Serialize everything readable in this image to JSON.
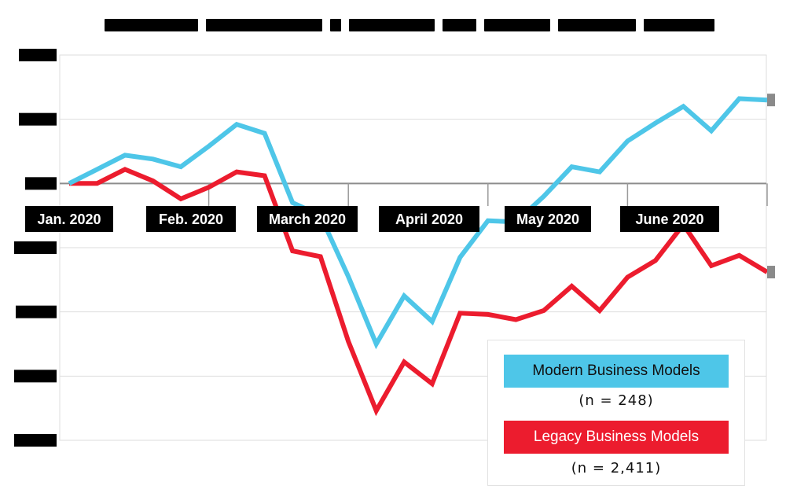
{
  "chart_data": {
    "type": "line",
    "title": "",
    "xlabel": "",
    "ylabel": "",
    "month_labels": [
      "Jan. 2020",
      "Feb. 2020",
      "March 2020",
      "April 2020",
      "May 2020",
      "June 2020"
    ],
    "ylim": [
      -40,
      20
    ],
    "y_ticks": [
      20,
      10,
      0,
      -10,
      -20,
      -30,
      -40
    ],
    "grid": true,
    "legend_position": "bottom-right",
    "series": [
      {
        "name": "Modern Business Models",
        "note": "(n = 248)",
        "color": "#4ec6e8",
        "values": [
          0,
          2.2,
          4.4,
          3.8,
          2.6,
          5.8,
          9.2,
          7.8,
          -3.0,
          -5.0,
          -14.5,
          -25.0,
          -17.5,
          -21.5,
          -11.5,
          -5.8,
          -6.0,
          -2.0,
          2.6,
          1.8,
          6.6,
          9.4,
          12.0,
          8.2,
          13.2,
          13.0
        ],
        "end_marker": true
      },
      {
        "name": "Legacy Business Models",
        "note": "(n = 2,411)",
        "color": "#ec1c2e",
        "values": [
          0,
          0,
          2.2,
          0.4,
          -2.4,
          -0.6,
          1.8,
          1.2,
          -10.5,
          -11.4,
          -24.6,
          -35.4,
          -27.8,
          -31.2,
          -20.2,
          -20.4,
          -21.2,
          -19.8,
          -16.0,
          -19.8,
          -14.6,
          -12.0,
          -6.4,
          -12.8,
          -11.2,
          -13.8
        ],
        "end_marker": true
      }
    ]
  }
}
